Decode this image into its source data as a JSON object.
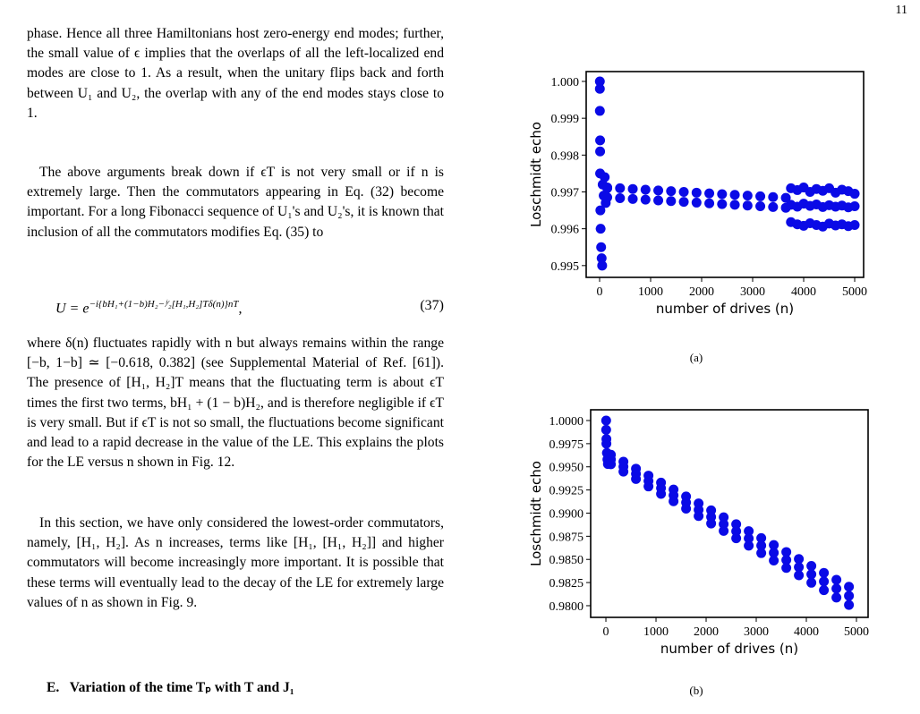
{
  "page_number": "11",
  "paragraphs": [
    "phase. Hence all three Hamiltonians host zero-energy end modes; further, the small value of ϵ implies that the overlaps of all the left-localized end modes are close to 1. As a result, when the unitary flips back and forth between U₁ and U₂, the overlap with any of the end modes stays close to 1.",
    "The above arguments break down if ϵT is not very small or if n is extremely large. Then the commutators appearing in Eq. (32) become important. For a long Fibonacci sequence of U₁'s and U₂'s, it is known that inclusion of all the commutators modifies Eq. (35) to",
    "where δ(n) fluctuates rapidly with n but always remains within the range [−b, 1−b] ≃ [−0.618, 0.382] (see Supplemental Material of Ref. [61]). The presence of [H₁, H₂]T means that the fluctuating term is about ϵT times the first two terms, bH₁ + (1 − b)H₂, and is therefore negligible if ϵT is very small. But if ϵT is not so small, the fluctuations become significant and lead to a rapid decrease in the value of the LE. This explains the plots for the LE versus n shown in Fig. 12.",
    "In this section, we have only considered the lowest-order commutators, namely, [H₁, H₂]. As n increases, terms like [H₁, [H₁, H₂]] and higher commutators will become increasingly more important. It is possible that these terms will eventually lead to the decay of the LE for extremely large values of n as shown in Fig. 9."
  ],
  "equation": {
    "lhs": "U  =  e",
    "exponent": "−i{bH₁+(1−b)H₂−ⁱ⁄₂[H₁,H₂]Tδ(n)}nT",
    "trail": ",",
    "number": "(37)"
  },
  "section_heading": {
    "label": "E.",
    "title": "Variation of the time Tₚ with T and J₁"
  },
  "chart_data": [
    {
      "type": "scatter",
      "caption": "(a)",
      "xlabel": "number of drives (n)",
      "ylabel": "Loschmidt echo",
      "color": "#0a0ae6",
      "xlim": [
        -263,
        5175
      ],
      "xticks": [
        0,
        1000,
        2000,
        3000,
        4000,
        5000
      ],
      "ylim": [
        0.99468,
        1.000267
      ],
      "yticks": [
        0.995,
        0.996,
        0.997,
        0.998,
        0.999,
        {
          "value": 1,
          "label": "1.000"
        }
      ],
      "x": [
        5,
        5,
        5,
        10,
        10,
        10,
        15,
        20,
        30,
        40,
        50,
        60,
        80,
        100,
        120,
        150,
        150,
        400,
        650,
        900,
        1150,
        1400,
        1650,
        1900,
        2150,
        2400,
        2650,
        2900,
        3150,
        3400,
        3650,
        150,
        400,
        650,
        900,
        1150,
        1400,
        1650,
        1900,
        2150,
        2400,
        2650,
        2900,
        3150,
        3400,
        3650,
        3750,
        3875,
        4000,
        4125,
        4250,
        4375,
        4500,
        4625,
        4750,
        4875,
        5000,
        3750,
        3875,
        4000,
        4125,
        4250,
        4375,
        4500,
        4625,
        4750,
        4875,
        5000,
        3750,
        3875,
        4000,
        4125,
        4250,
        4375,
        4500,
        4625,
        4750,
        4875,
        5000
      ],
      "values": [
        1.0,
        0.9998,
        0.9992,
        0.9984,
        0.9981,
        0.9975,
        0.9965,
        0.996,
        0.9955,
        0.9952,
        0.995,
        0.9972,
        0.9969,
        0.9974,
        0.9967,
        0.9971,
        0.99712,
        0.9971,
        0.99708,
        0.99706,
        0.99704,
        0.99702,
        0.997,
        0.99698,
        0.99696,
        0.99694,
        0.99692,
        0.9969,
        0.99688,
        0.99686,
        0.99684,
        0.99685,
        0.99683,
        0.99681,
        0.99679,
        0.99677,
        0.99675,
        0.99673,
        0.99671,
        0.99669,
        0.99667,
        0.99665,
        0.99663,
        0.99661,
        0.99659,
        0.99657,
        0.9971,
        0.99705,
        0.99712,
        0.997,
        0.99708,
        0.99703,
        0.9971,
        0.99698,
        0.99706,
        0.99702,
        0.99695,
        0.99665,
        0.9966,
        0.99668,
        0.99662,
        0.99666,
        0.99659,
        0.99664,
        0.9966,
        0.99663,
        0.99658,
        0.99661,
        0.99618,
        0.99612,
        0.99608,
        0.99615,
        0.9961,
        0.99606,
        0.99614,
        0.99609,
        0.99612,
        0.99607,
        0.9961
      ]
    },
    {
      "type": "scatter",
      "caption": "(b)",
      "xlabel": "number of drives (n)",
      "ylabel": "Loschmidt echo",
      "color": "#0a0ae6",
      "xlim": [
        -304,
        5232
      ],
      "xticks": [
        0,
        1000,
        2000,
        3000,
        4000,
        5000
      ],
      "ylim": [
        0.97874,
        1.00116
      ],
      "yticks": [
        {
          "value": 0.98,
          "label": "0.9800"
        },
        0.9825,
        {
          "value": 0.985,
          "label": "0.9850"
        },
        0.9875,
        {
          "value": 0.99,
          "label": "0.9900"
        },
        0.9925,
        {
          "value": 0.995,
          "label": "0.9950"
        },
        0.9975,
        {
          "value": 1,
          "label": "1.0000"
        }
      ],
      "x": [
        5,
        5,
        10,
        10,
        20,
        30,
        40,
        100,
        350,
        600,
        850,
        1100,
        1350,
        1600,
        1850,
        2100,
        2350,
        2600,
        2850,
        3100,
        3350,
        3600,
        3850,
        4100,
        4350,
        4600,
        4850,
        100,
        350,
        600,
        850,
        1100,
        1350,
        1600,
        1850,
        2100,
        2350,
        2600,
        2850,
        3100,
        3350,
        3600,
        3850,
        4100,
        4350,
        4600,
        4850,
        100,
        350,
        600,
        850,
        1100,
        1350,
        1600,
        1850,
        2100,
        2350,
        2600,
        2850,
        3100,
        3350,
        3600,
        3850,
        4100,
        4350,
        4600,
        4850
      ],
      "values": [
        1.0,
        0.999,
        0.998,
        0.9975,
        0.9965,
        0.9958,
        0.9953,
        0.9963,
        0.99555,
        0.9948,
        0.99405,
        0.9933,
        0.99255,
        0.9918,
        0.99105,
        0.9903,
        0.98955,
        0.9888,
        0.98805,
        0.9873,
        0.98655,
        0.9858,
        0.98505,
        0.9843,
        0.98355,
        0.9828,
        0.98205,
        0.99528,
        0.99448,
        0.99368,
        0.99288,
        0.99208,
        0.99128,
        0.99048,
        0.98968,
        0.98888,
        0.98808,
        0.98728,
        0.98648,
        0.98568,
        0.98488,
        0.98408,
        0.98328,
        0.98248,
        0.98168,
        0.98088,
        0.98008,
        0.99579,
        0.995015,
        0.99424,
        0.993465,
        0.99269,
        0.991915,
        0.99114,
        0.990365,
        0.98959,
        0.988815,
        0.98804,
        0.987265,
        0.98649,
        0.985715,
        0.98494,
        0.984165,
        0.98339,
        0.982615,
        0.98184,
        0.981065
      ]
    }
  ]
}
